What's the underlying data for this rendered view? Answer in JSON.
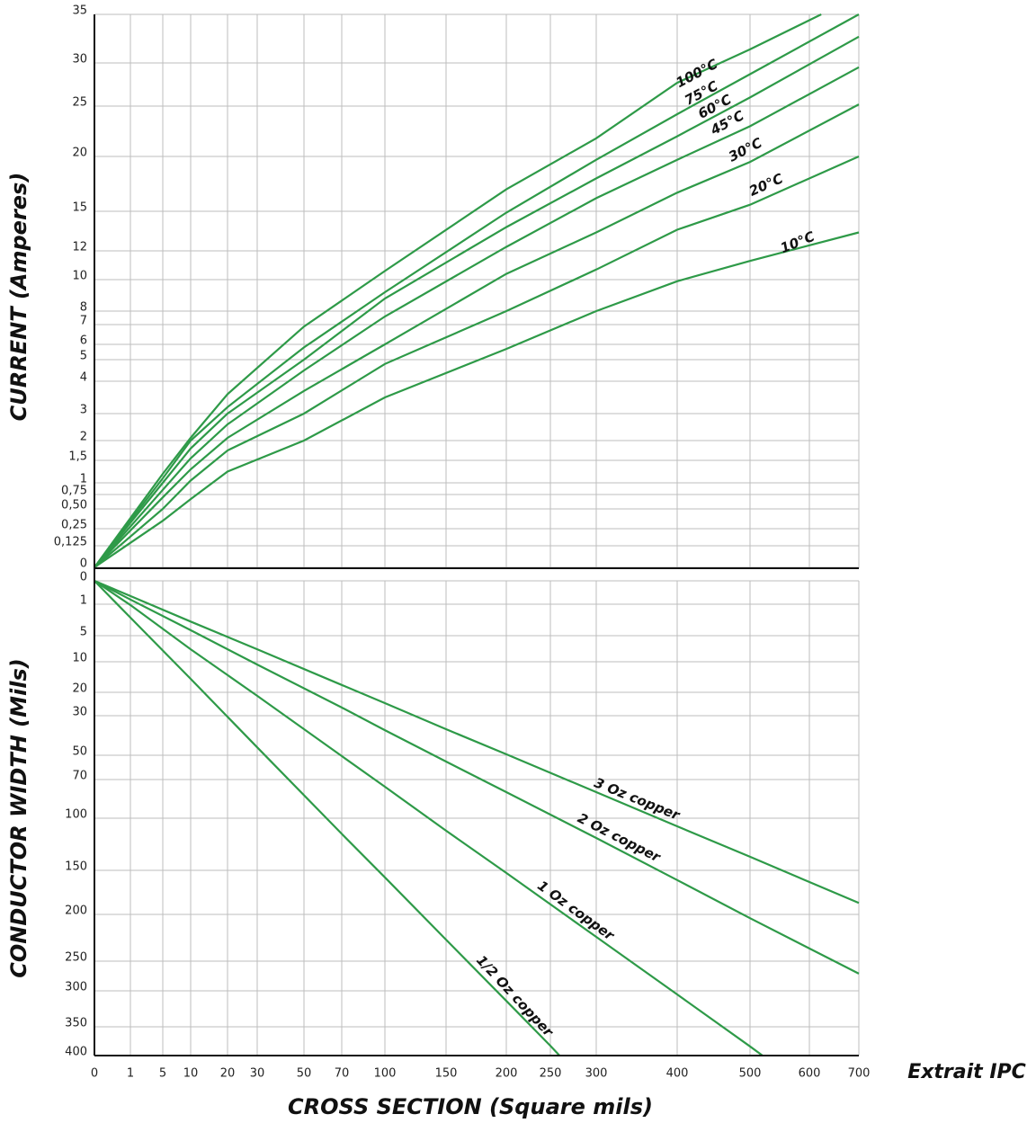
{
  "chart_data": [
    {
      "type": "line",
      "ylabel": "CURRENT (Amperes)",
      "ylim": [
        0,
        35
      ],
      "yticks": [
        0,
        {
          "value": 0.125,
          "label": "0,125"
        },
        {
          "value": 0.25,
          "label": "0,25"
        },
        {
          "value": 0.5,
          "label": "0,50"
        },
        {
          "value": 0.75,
          "label": "0,75"
        },
        1,
        {
          "value": 1.5,
          "label": "1,5"
        },
        2,
        3,
        4,
        5,
        6,
        7,
        8,
        10,
        12,
        15,
        20,
        25,
        30,
        35
      ],
      "grid": true,
      "series": [
        {
          "name": "100°C",
          "color": "#2e9a48",
          "x": [
            0,
            5,
            10,
            20,
            50,
            100,
            200,
            300,
            400,
            500,
            624
          ],
          "values": [
            0,
            1.2,
            2.1,
            3.6,
            6.9,
            10.6,
            17,
            21.8,
            27.7,
            31.4,
            35
          ]
        },
        {
          "name": "75°C",
          "color": "#2e9a48",
          "x": [
            0,
            5,
            10,
            20,
            50,
            100,
            200,
            300,
            400,
            500,
            700
          ],
          "values": [
            0,
            1.1,
            2,
            3.2,
            5.8,
            9.2,
            14.9,
            19.7,
            24.2,
            28.7,
            35
          ]
        },
        {
          "name": "60°C",
          "color": "#2e9a48",
          "x": [
            0,
            5,
            10,
            20,
            50,
            100,
            200,
            300,
            400,
            500,
            700
          ],
          "values": [
            0,
            1,
            1.8,
            3,
            5,
            8.8,
            13.8,
            18,
            22,
            26,
            32.7
          ]
        },
        {
          "name": "45°C",
          "color": "#2e9a48",
          "x": [
            0,
            5,
            10,
            20,
            50,
            100,
            200,
            300,
            400,
            500,
            700
          ],
          "values": [
            0,
            0.85,
            1.55,
            2.6,
            4.5,
            7.6,
            12.3,
            16.2,
            19.7,
            23,
            29.5
          ]
        },
        {
          "name": "30°C",
          "color": "#2e9a48",
          "x": [
            0,
            5,
            10,
            20,
            50,
            100,
            200,
            300,
            400,
            500,
            700
          ],
          "values": [
            0,
            0.7,
            1.3,
            2.1,
            3.7,
            6,
            10.4,
            13.4,
            16.7,
            19.5,
            25.2
          ]
        },
        {
          "name": "20°C",
          "color": "#2e9a48",
          "x": [
            0,
            5,
            10,
            20,
            50,
            100,
            200,
            300,
            400,
            500,
            700
          ],
          "values": [
            0,
            0.5,
            1.05,
            1.75,
            3,
            4.8,
            8,
            10.7,
            13.6,
            15.6,
            20
          ]
        },
        {
          "name": "10°C",
          "color": "#2e9a48",
          "x": [
            0,
            5,
            10,
            20,
            50,
            100,
            200,
            300,
            400,
            500,
            700
          ],
          "values": [
            0,
            0.35,
            0.67,
            1.25,
            2,
            3.5,
            5.7,
            8,
            9.9,
            11.3,
            13.4
          ]
        }
      ]
    },
    {
      "type": "line",
      "ylabel": "CONDUCTOR WIDTH (Mils)",
      "xlabel": "CROSS SECTION (Square mils)",
      "annotation": "Extrait IPC",
      "xlim": [
        0,
        700
      ],
      "xticks": [
        0,
        1,
        5,
        10,
        20,
        30,
        50,
        70,
        100,
        150,
        200,
        250,
        300,
        400,
        500,
        600,
        700
      ],
      "ylim": [
        0,
        400
      ],
      "yticks": [
        0,
        1,
        5,
        10,
        20,
        30,
        50,
        70,
        100,
        150,
        200,
        250,
        300,
        350,
        400
      ],
      "grid": true,
      "series": [
        {
          "name": "3 Oz copper",
          "color": "#2e9a48",
          "x": [
            0,
            1,
            10,
            30,
            70,
            100,
            150,
            200,
            300,
            400,
            500,
            700
          ],
          "values": [
            0,
            0.65,
            3.2,
            7.6,
            17.6,
            24.6,
            36.8,
            49.5,
            79.8,
            107.8,
            137,
            187
          ]
        },
        {
          "name": "2 Oz copper",
          "color": "#2e9a48",
          "x": [
            0,
            1,
            10,
            30,
            70,
            100,
            150,
            200,
            300,
            400,
            500,
            700
          ],
          "values": [
            0,
            0.8,
            4.3,
            10.9,
            26.5,
            37.3,
            55.2,
            79.8,
            119,
            161,
            204,
            271
          ]
        },
        {
          "name": "1 Oz copper",
          "color": "#2e9a48",
          "x": [
            0,
            1,
            10,
            30,
            70,
            100,
            150,
            200,
            300,
            400,
            500,
            521
          ],
          "values": [
            0,
            1.1,
            7.6,
            21.5,
            50.7,
            75.6,
            112,
            153,
            224,
            305,
            384,
            400
          ]
        },
        {
          "name": "1/2 Oz copper",
          "color": "#2e9a48",
          "x": [
            0,
            1,
            10,
            30,
            70,
            100,
            150,
            200,
            250,
            260
          ],
          "values": [
            0,
            2.7,
            15.6,
            46,
            115,
            158,
            227,
            314,
            383,
            400
          ]
        }
      ]
    }
  ]
}
